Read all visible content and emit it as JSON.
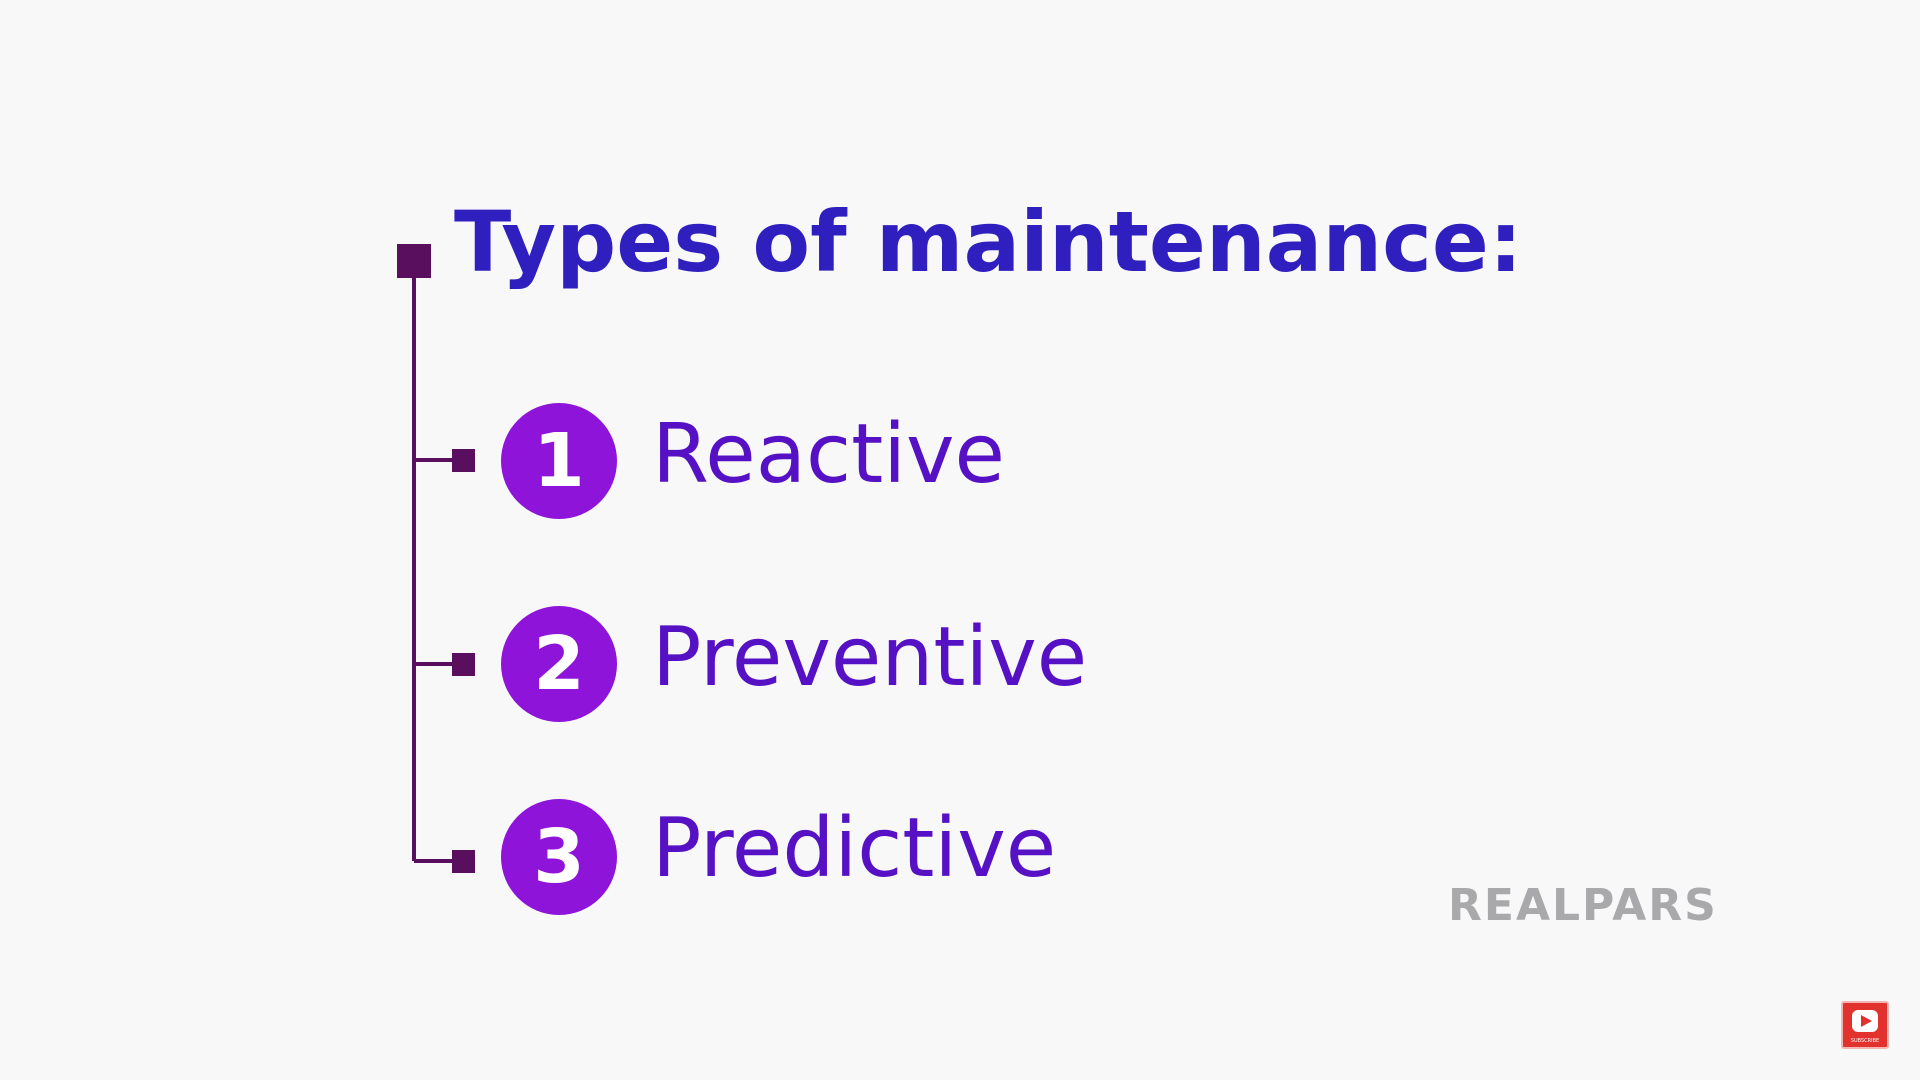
{
  "slide": {
    "heading": "Types of maintenance:",
    "items": [
      {
        "number": "1",
        "label": "Reactive"
      },
      {
        "number": "2",
        "label": "Preventive"
      },
      {
        "number": "3",
        "label": "Predictive"
      }
    ]
  },
  "brand": {
    "logo_text": "REALPARS",
    "subscribe_label": "SUBSCRIBE"
  },
  "colors": {
    "heading": "#2f1fbf",
    "item_text": "#5611c4",
    "number_circle": "#8e14d9",
    "tree_lines": "#5a0f5e",
    "logo": "#a9a9ac",
    "subscribe": "#e2322d",
    "background": "#f8f8f9"
  }
}
